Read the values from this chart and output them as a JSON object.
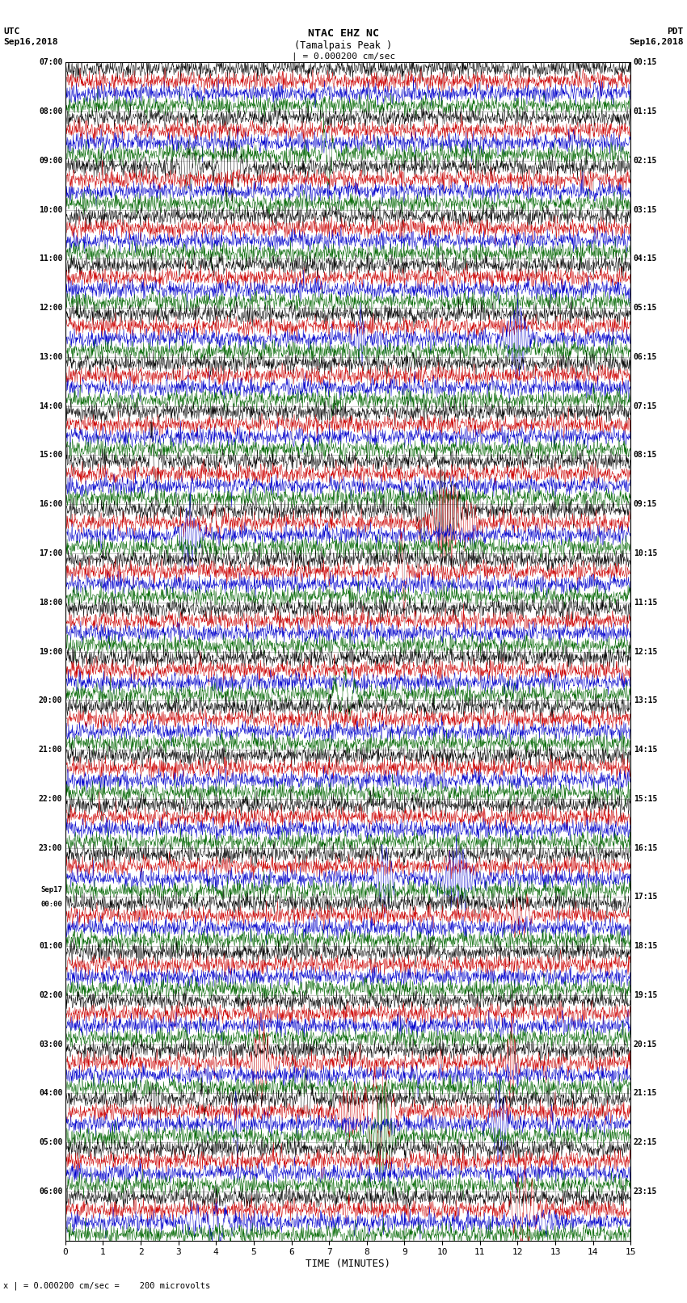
{
  "title_line1": "NTAC EHZ NC",
  "title_line2": "(Tamalpais Peak )",
  "scale_text": "| = 0.000200 cm/sec",
  "left_label_top": "UTC",
  "left_label_date": "Sep16,2018",
  "right_label_top": "PDT",
  "right_label_date": "Sep16,2018",
  "bottom_note": "x | = 0.000200 cm/sec =    200 microvolts",
  "xlabel": "TIME (MINUTES)",
  "bg_color": "#ffffff",
  "trace_colors": [
    "#000000",
    "#cc0000",
    "#0000cc",
    "#006600"
  ],
  "grid_color": "#999999",
  "text_color": "#000000",
  "num_rows": 24,
  "traces_per_row": 4,
  "left_utc_times": [
    "07:00",
    "",
    "",
    "",
    "08:00",
    "",
    "",
    "",
    "09:00",
    "",
    "",
    "",
    "10:00",
    "",
    "",
    "",
    "11:00",
    "",
    "",
    "",
    "12:00",
    "",
    "",
    "",
    "13:00",
    "",
    "",
    "",
    "14:00",
    "",
    "",
    "",
    "15:00",
    "",
    "",
    "",
    "16:00",
    "",
    "",
    "",
    "17:00",
    "",
    "",
    "",
    "18:00",
    "",
    "",
    "",
    "19:00",
    "",
    "",
    "",
    "20:00",
    "",
    "",
    "",
    "21:00",
    "",
    "",
    "",
    "22:00",
    "",
    "",
    "",
    "23:00",
    "",
    "",
    "",
    "Sep17\n00:00",
    "",
    "",
    "",
    "01:00",
    "",
    "",
    "",
    "02:00",
    "",
    "",
    "",
    "03:00",
    "",
    "",
    "",
    "04:00",
    "",
    "",
    "",
    "05:00",
    "",
    "",
    "",
    "06:00",
    "",
    "",
    ""
  ],
  "right_pdt_times": [
    "00:15",
    "",
    "",
    "",
    "01:15",
    "",
    "",
    "",
    "02:15",
    "",
    "",
    "",
    "03:15",
    "",
    "",
    "",
    "04:15",
    "",
    "",
    "",
    "05:15",
    "",
    "",
    "",
    "06:15",
    "",
    "",
    "",
    "07:15",
    "",
    "",
    "",
    "08:15",
    "",
    "",
    "",
    "09:15",
    "",
    "",
    "",
    "10:15",
    "",
    "",
    "",
    "11:15",
    "",
    "",
    "",
    "12:15",
    "",
    "",
    "",
    "13:15",
    "",
    "",
    "",
    "14:15",
    "",
    "",
    "",
    "15:15",
    "",
    "",
    "",
    "16:15",
    "",
    "",
    "",
    "17:15",
    "",
    "",
    "",
    "18:15",
    "",
    "",
    "",
    "19:15",
    "",
    "",
    "",
    "20:15",
    "",
    "",
    "",
    "21:15",
    "",
    "",
    "",
    "22:15",
    "",
    "",
    "",
    "23:15",
    "",
    "",
    ""
  ],
  "left_utc_labels": [
    "07:00",
    "08:00",
    "09:00",
    "10:00",
    "11:00",
    "12:00",
    "13:00",
    "14:00",
    "15:00",
    "16:00",
    "17:00",
    "18:00",
    "19:00",
    "20:00",
    "21:00",
    "22:00",
    "23:00",
    "Sep17\n00:00",
    "01:00",
    "02:00",
    "03:00",
    "04:00",
    "05:00",
    "06:00"
  ],
  "right_pdt_labels": [
    "00:15",
    "01:15",
    "02:15",
    "03:15",
    "04:15",
    "05:15",
    "06:15",
    "07:15",
    "08:15",
    "09:15",
    "10:15",
    "11:15",
    "12:15",
    "13:15",
    "14:15",
    "15:15",
    "16:15",
    "17:15",
    "18:15",
    "19:15",
    "20:15",
    "21:15",
    "22:15",
    "23:15"
  ],
  "xmin": 0,
  "xmax": 15,
  "xticks": [
    0,
    1,
    2,
    3,
    4,
    5,
    6,
    7,
    8,
    9,
    10,
    11,
    12,
    13,
    14,
    15
  ],
  "fig_width": 8.5,
  "fig_height": 16.13,
  "dpi": 100
}
